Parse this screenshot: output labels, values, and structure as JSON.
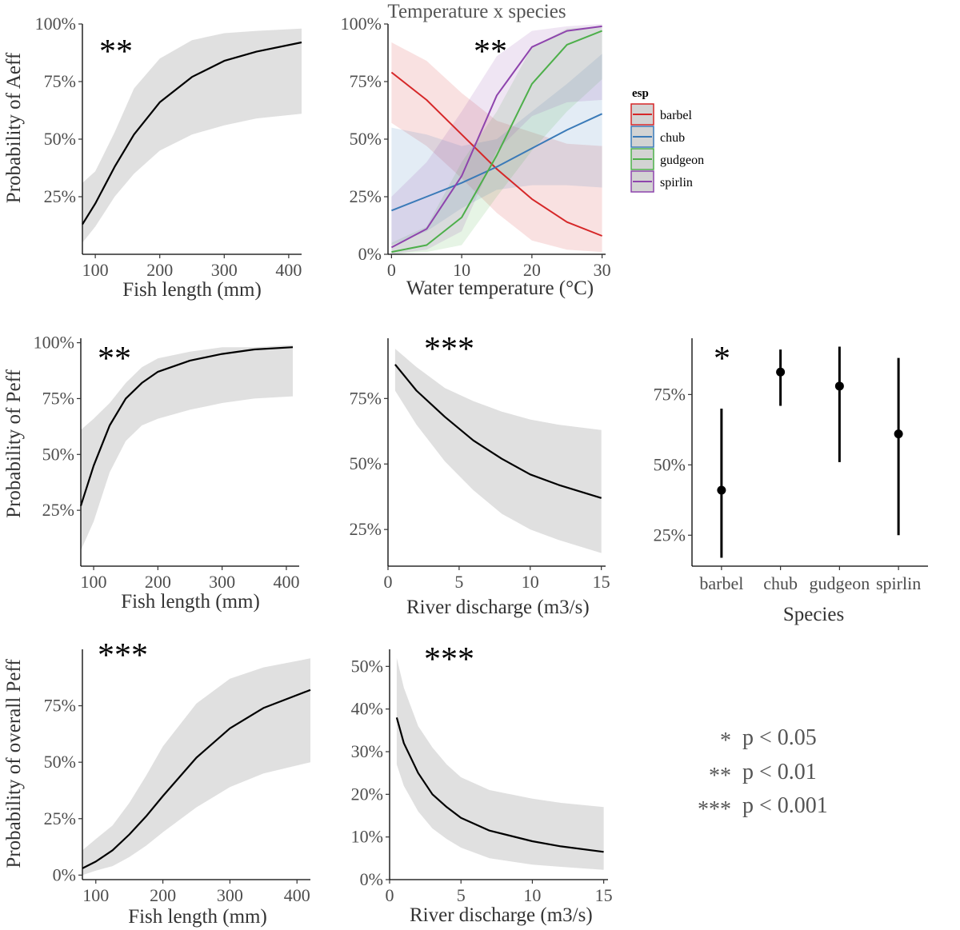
{
  "figure": {
    "significance_legend": [
      {
        "stars": "*",
        "label": "p < 0.05"
      },
      {
        "stars": "**",
        "label": "p < 0.01"
      },
      {
        "stars": "***",
        "label": "p < 0.001"
      }
    ]
  },
  "chart_data": [
    {
      "id": "aeff-length",
      "type": "line",
      "title": "",
      "xlabel": "Fish length (mm)",
      "ylabel": "Probability of Aeff",
      "significance": "**",
      "xlim": [
        80,
        420
      ],
      "ylim": [
        0,
        1
      ],
      "x_ticks": [
        100,
        200,
        300,
        400
      ],
      "y_ticks": [
        0.25,
        0.5,
        0.75,
        1.0
      ],
      "y_tick_labels": [
        "25%",
        "50%",
        "75%",
        "100%"
      ],
      "series": [
        {
          "name": "fit",
          "color": "#000000",
          "x": [
            80,
            100,
            130,
            160,
            200,
            250,
            300,
            350,
            420
          ],
          "y": [
            0.13,
            0.22,
            0.38,
            0.52,
            0.66,
            0.77,
            0.84,
            0.88,
            0.92
          ],
          "lower": [
            0.05,
            0.12,
            0.25,
            0.35,
            0.45,
            0.52,
            0.56,
            0.59,
            0.61
          ],
          "upper": [
            0.31,
            0.36,
            0.53,
            0.72,
            0.85,
            0.93,
            0.96,
            0.97,
            0.98
          ]
        }
      ]
    },
    {
      "id": "aeff-temp",
      "type": "line",
      "title": "Temperature x species",
      "xlabel": "Water temperature (°C)",
      "ylabel": "",
      "significance": "**",
      "xlim": [
        -0.5,
        30.5
      ],
      "ylim": [
        0,
        1
      ],
      "x_ticks": [
        0,
        10,
        20,
        30
      ],
      "y_ticks": [
        0,
        0.25,
        0.5,
        0.75,
        1.0
      ],
      "y_tick_labels": [
        "0%",
        "25%",
        "50%",
        "75%",
        "100%"
      ],
      "legend_title": "esp",
      "legend_position": "right",
      "series": [
        {
          "name": "barbel",
          "color": "#d62728",
          "x": [
            0,
            5,
            10,
            15,
            20,
            25,
            30
          ],
          "y": [
            0.79,
            0.67,
            0.52,
            0.37,
            0.24,
            0.14,
            0.08
          ],
          "lower": [
            0.57,
            0.47,
            0.33,
            0.18,
            0.06,
            0.02,
            0.01
          ],
          "upper": [
            0.92,
            0.84,
            0.7,
            0.58,
            0.53,
            0.48,
            0.47
          ]
        },
        {
          "name": "chub",
          "color": "#3a7ab8",
          "x": [
            0,
            5,
            10,
            15,
            20,
            25,
            30
          ],
          "y": [
            0.19,
            0.25,
            0.31,
            0.38,
            0.46,
            0.54,
            0.61
          ],
          "lower": [
            0.04,
            0.1,
            0.2,
            0.28,
            0.3,
            0.3,
            0.29
          ],
          "upper": [
            0.55,
            0.52,
            0.47,
            0.5,
            0.62,
            0.74,
            0.87
          ]
        },
        {
          "name": "gudgeon",
          "color": "#4daf4a",
          "x": [
            0,
            5,
            10,
            15,
            20,
            25,
            30
          ],
          "y": [
            0.01,
            0.04,
            0.16,
            0.43,
            0.74,
            0.91,
            0.97
          ],
          "lower": [
            0.0,
            0.01,
            0.04,
            0.25,
            0.45,
            0.62,
            0.76
          ],
          "upper": [
            0.05,
            0.12,
            0.4,
            0.62,
            0.9,
            0.98,
            0.99
          ]
        },
        {
          "name": "spirlin",
          "color": "#8e44ad",
          "x": [
            0,
            5,
            10,
            15,
            20,
            25,
            30
          ],
          "y": [
            0.03,
            0.11,
            0.34,
            0.69,
            0.9,
            0.97,
            0.99
          ],
          "lower": [
            0.0,
            0.02,
            0.1,
            0.45,
            0.6,
            0.66,
            0.67
          ],
          "upper": [
            0.25,
            0.4,
            0.62,
            0.86,
            0.97,
            0.99,
            1.0
          ]
        }
      ]
    },
    {
      "id": "peff-length",
      "type": "line",
      "title": "",
      "xlabel": "Fish length (mm)",
      "ylabel": "Probability of Peff",
      "significance": "**",
      "xlim": [
        80,
        420
      ],
      "ylim": [
        0.0,
        1.02
      ],
      "x_ticks": [
        100,
        200,
        300,
        400
      ],
      "y_ticks": [
        0.25,
        0.5,
        0.75,
        1.0
      ],
      "y_tick_labels": [
        "25%",
        "50%",
        "75%",
        "100%"
      ],
      "series": [
        {
          "name": "fit",
          "color": "#000000",
          "x": [
            80,
            100,
            125,
            150,
            175,
            200,
            250,
            300,
            350,
            410
          ],
          "y": [
            0.27,
            0.45,
            0.63,
            0.75,
            0.82,
            0.87,
            0.92,
            0.95,
            0.97,
            0.98
          ],
          "lower": [
            0.07,
            0.2,
            0.42,
            0.56,
            0.63,
            0.66,
            0.7,
            0.73,
            0.75,
            0.76
          ],
          "upper": [
            0.61,
            0.66,
            0.73,
            0.82,
            0.89,
            0.93,
            0.96,
            0.98,
            0.98,
            0.99
          ]
        }
      ]
    },
    {
      "id": "peff-discharge",
      "type": "line",
      "title": "",
      "xlabel": "River discharge (m3/s)",
      "ylabel": "",
      "significance": "***",
      "xlim": [
        0,
        15.3
      ],
      "ylim": [
        0.11,
        0.98
      ],
      "x_ticks": [
        0,
        5,
        10,
        15
      ],
      "y_ticks": [
        0.25,
        0.5,
        0.75
      ],
      "y_tick_labels": [
        "25%",
        "50%",
        "75%"
      ],
      "series": [
        {
          "name": "fit",
          "color": "#000000",
          "x": [
            0.5,
            2,
            4,
            6,
            8,
            10,
            12,
            15
          ],
          "y": [
            0.88,
            0.78,
            0.68,
            0.59,
            0.52,
            0.46,
            0.42,
            0.37
          ],
          "lower": [
            0.78,
            0.65,
            0.51,
            0.4,
            0.31,
            0.25,
            0.21,
            0.16
          ],
          "upper": [
            0.94,
            0.87,
            0.79,
            0.74,
            0.7,
            0.67,
            0.65,
            0.63
          ]
        }
      ]
    },
    {
      "id": "peff-species",
      "type": "scatter",
      "title": "",
      "xlabel": "Species",
      "ylabel": "",
      "significance": "*",
      "categories": [
        "barbel",
        "chub",
        "gudgeon",
        "spirlin"
      ],
      "ylim": [
        0.14,
        0.95
      ],
      "y_ticks": [
        0.25,
        0.5,
        0.75
      ],
      "y_tick_labels": [
        "25%",
        "50%",
        "75%"
      ],
      "values": [
        0.41,
        0.83,
        0.78,
        0.61
      ],
      "lower": [
        0.17,
        0.71,
        0.51,
        0.25
      ],
      "upper": [
        0.7,
        0.91,
        0.92,
        0.88
      ]
    },
    {
      "id": "overall-length",
      "type": "line",
      "title": "",
      "xlabel": "Fish length (mm)",
      "ylabel": "Probability of overall Peff",
      "significance": "***",
      "xlim": [
        80,
        420
      ],
      "ylim": [
        -0.02,
        1.0
      ],
      "x_ticks": [
        100,
        200,
        300,
        400
      ],
      "y_ticks": [
        0,
        0.25,
        0.5,
        0.75
      ],
      "y_tick_labels": [
        "0%",
        "25%",
        "50%",
        "75%"
      ],
      "series": [
        {
          "name": "fit",
          "color": "#000000",
          "x": [
            80,
            100,
            125,
            150,
            175,
            200,
            250,
            300,
            350,
            420
          ],
          "y": [
            0.03,
            0.06,
            0.11,
            0.18,
            0.26,
            0.35,
            0.52,
            0.65,
            0.74,
            0.82
          ],
          "lower": [
            0.0,
            0.02,
            0.04,
            0.08,
            0.13,
            0.19,
            0.3,
            0.39,
            0.45,
            0.5
          ],
          "upper": [
            0.11,
            0.16,
            0.22,
            0.32,
            0.44,
            0.57,
            0.76,
            0.87,
            0.92,
            0.96
          ]
        }
      ]
    },
    {
      "id": "overall-discharge",
      "type": "line",
      "title": "",
      "xlabel": "River discharge (m3/s)",
      "ylabel": "",
      "significance": "***",
      "xlim": [
        0,
        15.3
      ],
      "ylim": [
        0,
        0.54
      ],
      "x_ticks": [
        0,
        5,
        10,
        15
      ],
      "y_ticks": [
        0,
        0.1,
        0.2,
        0.3,
        0.4,
        0.5
      ],
      "y_tick_labels": [
        "0%",
        "10%",
        "20%",
        "30%",
        "40%",
        "50%"
      ],
      "series": [
        {
          "name": "fit",
          "color": "#000000",
          "x": [
            0.5,
            1,
            2,
            3,
            4,
            5,
            7,
            10,
            12,
            15
          ],
          "y": [
            0.38,
            0.32,
            0.25,
            0.2,
            0.17,
            0.145,
            0.115,
            0.09,
            0.078,
            0.065
          ],
          "lower": [
            0.27,
            0.22,
            0.16,
            0.12,
            0.095,
            0.075,
            0.05,
            0.035,
            0.03,
            0.023
          ],
          "upper": [
            0.52,
            0.45,
            0.36,
            0.31,
            0.27,
            0.24,
            0.21,
            0.19,
            0.18,
            0.17
          ]
        }
      ]
    }
  ]
}
